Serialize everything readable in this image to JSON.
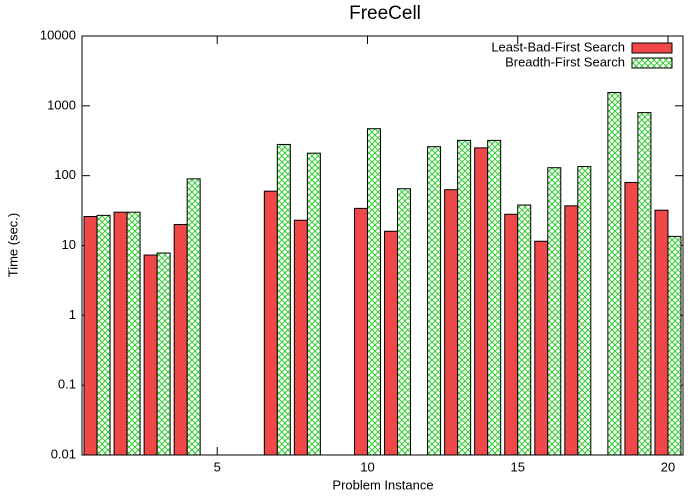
{
  "chart_data": {
    "type": "bar",
    "title": "FreeCell",
    "xlabel": "Problem Instance",
    "ylabel": "Time (sec.)",
    "log_scale_y": true,
    "legend": "upper right",
    "x": [
      1,
      2,
      3,
      4,
      5,
      6,
      7,
      8,
      9,
      10,
      11,
      12,
      13,
      14,
      15,
      16,
      17,
      18,
      19,
      20
    ],
    "series": [
      {
        "name": "Least-Bad-First Search",
        "color": "#f04848",
        "values": [
          26,
          30,
          7.3,
          20,
          null,
          null,
          60,
          23,
          null,
          34,
          16,
          null,
          63,
          250,
          28,
          11.5,
          37,
          null,
          80,
          32
        ]
      },
      {
        "name": "Breadth-First Search",
        "color": "#33cc33",
        "values": [
          27,
          30,
          7.8,
          90,
          null,
          null,
          280,
          210,
          null,
          470,
          65,
          260,
          320,
          320,
          38,
          130,
          135,
          1550,
          800,
          13.5
        ]
      }
    ],
    "xlim": [
      0.5,
      20.5
    ],
    "xticks": [
      5,
      10,
      15,
      20
    ],
    "ylim": [
      0.01,
      10000
    ],
    "yticks": [
      0.01,
      0.1,
      1,
      10,
      100,
      1000,
      10000
    ]
  }
}
